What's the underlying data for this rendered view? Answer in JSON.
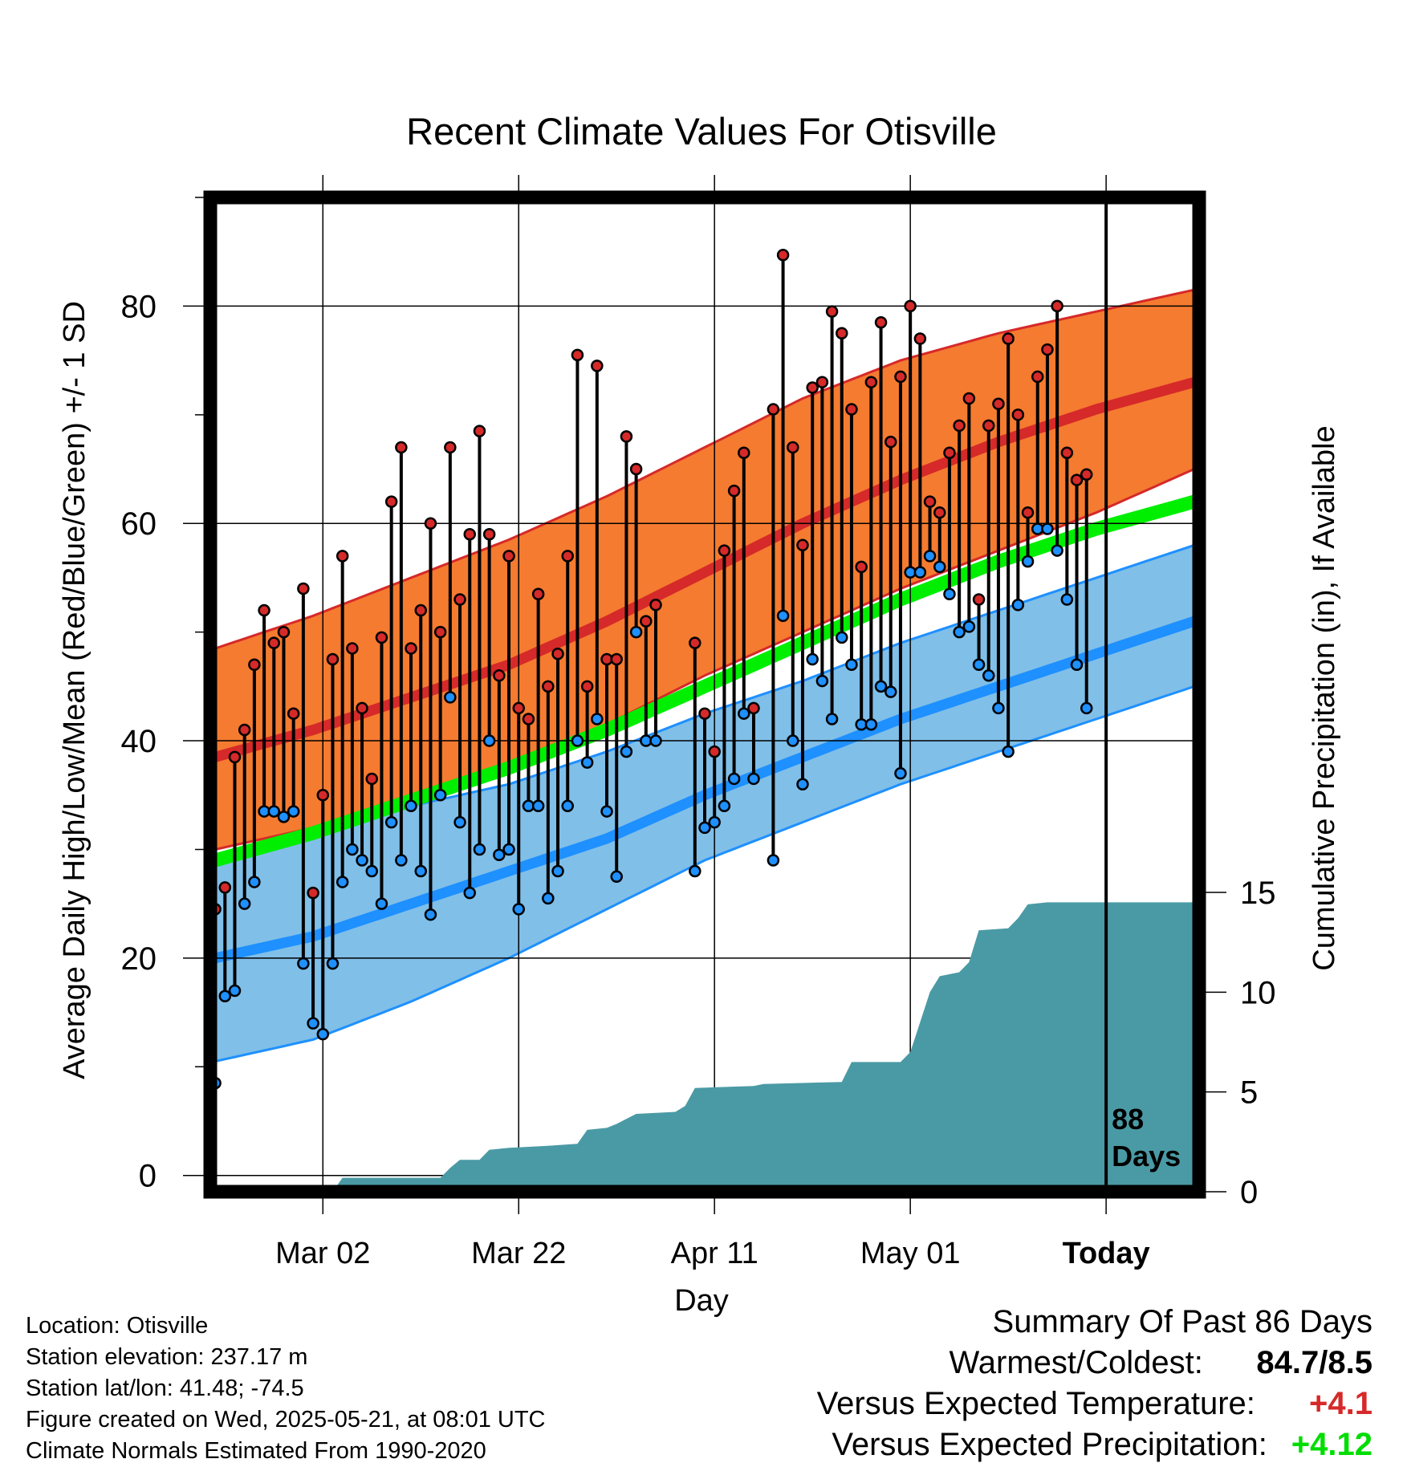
{
  "chart_data": {
    "type": "line",
    "title": "Recent Climate Values For Otisville",
    "xlabel": "Day",
    "ylabel": "Average Daily High/Low/Mean (Red/Blue/Green) +/- 1 SD",
    "y2label": "Cumulative Precipitation (in), If Available",
    "x_tick_labels": [
      "Mar 02",
      "Mar 22",
      "Apr 11",
      "May 01",
      "Today"
    ],
    "x_tick_days": [
      12,
      32,
      52,
      72,
      92
    ],
    "y_ticks": [
      0,
      20,
      40,
      60,
      80
    ],
    "y2_ticks": [
      0,
      5,
      10,
      15
    ],
    "ylim": [
      -1.5,
      90
    ],
    "y2lim": [
      0,
      15
    ],
    "xlim": [
      0.5,
      101.5
    ],
    "today_day": 92,
    "today_annotation": "88 Days",
    "today_annotation_lines": [
      "88",
      "Days"
    ],
    "grid": true,
    "colors": {
      "high_band": "#f47b30",
      "high_mean": "#d62929",
      "low_band": "#80bfe8",
      "low_mean": "#1e90ff",
      "mean": "#00ee00",
      "precip": "#4a9aa5",
      "high_marker": "#d62929",
      "low_marker": "#1e90ff"
    },
    "normals": {
      "days": [
        1,
        11,
        21,
        31,
        41,
        51,
        61,
        71,
        81,
        91,
        101
      ],
      "high_mean": [
        38.5,
        41,
        44,
        47,
        51,
        55.5,
        60,
        64,
        67.5,
        70.5,
        73
      ],
      "high_sd_upper": [
        48.5,
        51.5,
        55,
        58.5,
        62.5,
        67,
        71.5,
        75,
        77.5,
        79.5,
        81.5
      ],
      "high_sd_lower": [
        30,
        32,
        34.5,
        37.5,
        41.5,
        46,
        50,
        54,
        57.5,
        61,
        65
      ],
      "low_mean": [
        20,
        22,
        25,
        28,
        31,
        35,
        38.5,
        42,
        45,
        48,
        51
      ],
      "low_sd_upper": [
        29,
        31,
        34,
        36,
        39,
        42.5,
        45.5,
        49,
        52,
        55,
        58
      ],
      "low_sd_lower": [
        10.5,
        12.5,
        16,
        20,
        24.5,
        29,
        32.5,
        36,
        39,
        42,
        45
      ],
      "daily_mean": [
        29,
        31.5,
        34.5,
        37.5,
        41,
        45,
        49,
        53,
        56.5,
        59.5,
        62
      ]
    },
    "daily_obs": [
      {
        "day": 1,
        "high": 24.5,
        "low": 8.5
      },
      {
        "day": 2,
        "high": 26.5,
        "low": 16.5
      },
      {
        "day": 3,
        "high": 38.5,
        "low": 17
      },
      {
        "day": 4,
        "high": 41,
        "low": 25
      },
      {
        "day": 5,
        "high": 47,
        "low": 27
      },
      {
        "day": 6,
        "high": 52,
        "low": 33.5
      },
      {
        "day": 7,
        "high": 49,
        "low": 33.5
      },
      {
        "day": 8,
        "high": 50,
        "low": 33
      },
      {
        "day": 9,
        "high": 42.5,
        "low": 33.5
      },
      {
        "day": 10,
        "high": 54,
        "low": 19.5
      },
      {
        "day": 11,
        "high": 26,
        "low": 14
      },
      {
        "day": 12,
        "high": 35,
        "low": 13
      },
      {
        "day": 13,
        "high": 47.5,
        "low": 19.5
      },
      {
        "day": 14,
        "high": 57,
        "low": 27
      },
      {
        "day": 15,
        "high": 48.5,
        "low": 30
      },
      {
        "day": 16,
        "high": 43,
        "low": 29
      },
      {
        "day": 17,
        "high": 36.5,
        "low": 28
      },
      {
        "day": 18,
        "high": 49.5,
        "low": 25
      },
      {
        "day": 19,
        "high": 62,
        "low": 32.5
      },
      {
        "day": 20,
        "high": 67,
        "low": 29
      },
      {
        "day": 21,
        "high": 48.5,
        "low": 34
      },
      {
        "day": 22,
        "high": 52,
        "low": 28
      },
      {
        "day": 23,
        "high": 60,
        "low": 24
      },
      {
        "day": 24,
        "high": 50,
        "low": 35
      },
      {
        "day": 25,
        "high": 67,
        "low": 44
      },
      {
        "day": 26,
        "high": 53,
        "low": 32.5
      },
      {
        "day": 27,
        "high": 59,
        "low": 26
      },
      {
        "day": 28,
        "high": 68.5,
        "low": 30
      },
      {
        "day": 29,
        "high": 59,
        "low": 40
      },
      {
        "day": 30,
        "high": 46,
        "low": 29.5
      },
      {
        "day": 31,
        "high": 57,
        "low": 30
      },
      {
        "day": 32,
        "high": 43,
        "low": 24.5
      },
      {
        "day": 33,
        "high": 42,
        "low": 34
      },
      {
        "day": 34,
        "high": 53.5,
        "low": 34
      },
      {
        "day": 35,
        "high": 45,
        "low": 25.5
      },
      {
        "day": 36,
        "high": 48,
        "low": 28
      },
      {
        "day": 37,
        "high": 57,
        "low": 34
      },
      {
        "day": 38,
        "high": 75.5,
        "low": 40
      },
      {
        "day": 39,
        "high": 45,
        "low": 38
      },
      {
        "day": 40,
        "high": 74.5,
        "low": 42
      },
      {
        "day": 41,
        "high": 47.5,
        "low": 33.5
      },
      {
        "day": 42,
        "high": 47.5,
        "low": 27.5
      },
      {
        "day": 43,
        "high": 68,
        "low": 39
      },
      {
        "day": 44,
        "high": 65,
        "low": 50
      },
      {
        "day": 45,
        "high": 51,
        "low": 40
      },
      {
        "day": 46,
        "high": 52.5,
        "low": 40
      },
      {
        "day": 50,
        "high": 49,
        "low": 28
      },
      {
        "day": 51,
        "high": 42.5,
        "low": 32
      },
      {
        "day": 52,
        "high": 39,
        "low": 32.5
      },
      {
        "day": 53,
        "high": 57.5,
        "low": 34
      },
      {
        "day": 54,
        "high": 63,
        "low": 36.5
      },
      {
        "day": 55,
        "high": 66.5,
        "low": 42.5
      },
      {
        "day": 56,
        "high": 43,
        "low": 36.5
      },
      {
        "day": 58,
        "high": 70.5,
        "low": 29
      },
      {
        "day": 59,
        "high": 84.7,
        "low": 51.5
      },
      {
        "day": 60,
        "high": 67,
        "low": 40
      },
      {
        "day": 61,
        "high": 58,
        "low": 36
      },
      {
        "day": 62,
        "high": 72.5,
        "low": 47.5
      },
      {
        "day": 63,
        "high": 73,
        "low": 45.5
      },
      {
        "day": 64,
        "high": 79.5,
        "low": 42
      },
      {
        "day": 65,
        "high": 77.5,
        "low": 49.5
      },
      {
        "day": 66,
        "high": 70.5,
        "low": 47
      },
      {
        "day": 67,
        "high": 56,
        "low": 41.5
      },
      {
        "day": 68,
        "high": 73,
        "low": 41.5
      },
      {
        "day": 69,
        "high": 78.5,
        "low": 45
      },
      {
        "day": 70,
        "high": 67.5,
        "low": 44.5
      },
      {
        "day": 71,
        "high": 73.5,
        "low": 37
      },
      {
        "day": 72,
        "high": 80,
        "low": 55.5
      },
      {
        "day": 73,
        "high": 77,
        "low": 55.5
      },
      {
        "day": 74,
        "high": 62,
        "low": 57
      },
      {
        "day": 75,
        "high": 61,
        "low": 56
      },
      {
        "day": 76,
        "high": 66.5,
        "low": 53.5
      },
      {
        "day": 77,
        "high": 69,
        "low": 50
      },
      {
        "day": 78,
        "high": 71.5,
        "low": 50.5
      },
      {
        "day": 79,
        "high": 53,
        "low": 47
      },
      {
        "day": 80,
        "high": 69,
        "low": 46
      },
      {
        "day": 81,
        "high": 71,
        "low": 43
      },
      {
        "day": 82,
        "high": 77,
        "low": 39
      },
      {
        "day": 83,
        "high": 70,
        "low": 52.5
      },
      {
        "day": 84,
        "high": 61,
        "low": 56.5
      },
      {
        "day": 85,
        "high": 73.5,
        "low": 59.5
      },
      {
        "day": 86,
        "high": 76,
        "low": 59.5
      },
      {
        "day": 87,
        "high": 80,
        "low": 57.5
      },
      {
        "day": 88,
        "high": 66.5,
        "low": 53
      },
      {
        "day": 89,
        "high": 64,
        "low": 47
      },
      {
        "day": 90,
        "high": 64.5,
        "low": 43
      }
    ],
    "precip_cumulative": [
      [
        1,
        0
      ],
      [
        13,
        0
      ],
      [
        14,
        0.7
      ],
      [
        24,
        0.7
      ],
      [
        25,
        1.2
      ],
      [
        26,
        1.6
      ],
      [
        28,
        1.6
      ],
      [
        29,
        2.1
      ],
      [
        31,
        2.2
      ],
      [
        35,
        2.3
      ],
      [
        38,
        2.4
      ],
      [
        39,
        3.1
      ],
      [
        41,
        3.2
      ],
      [
        42,
        3.4
      ],
      [
        44,
        3.9
      ],
      [
        48,
        4.0
      ],
      [
        49,
        4.3
      ],
      [
        50,
        5.2
      ],
      [
        56,
        5.3
      ],
      [
        57,
        5.4
      ],
      [
        65,
        5.5
      ],
      [
        66,
        6.5
      ],
      [
        71,
        6.5
      ],
      [
        72,
        7.0
      ],
      [
        73,
        8.5
      ],
      [
        74,
        10.0
      ],
      [
        75,
        10.8
      ],
      [
        77,
        11.0
      ],
      [
        78,
        11.5
      ],
      [
        79,
        13.1
      ],
      [
        82,
        13.2
      ],
      [
        83,
        13.7
      ],
      [
        84,
        14.4
      ],
      [
        86,
        14.5
      ],
      [
        101.5,
        14.5
      ]
    ]
  },
  "footer": {
    "location": "Location: Otisville",
    "elevation": "Station elevation: 237.17 m",
    "latlon": "Station lat/lon: 41.48; -74.5",
    "created": "Figure created on Wed, 2025-05-21, at 08:01 UTC",
    "normals_period": "Climate Normals Estimated From 1990-2020"
  },
  "summary": {
    "title": "Summary Of Past 86 Days",
    "warmest_coldest_label": "Warmest/Coldest:",
    "warmest_coldest_value": "84.7/8.5",
    "temp_label": "Versus Expected Temperature:",
    "temp_value": "+4.1",
    "temp_color": "#d62929",
    "precip_label": "Versus Expected Precipitation:",
    "precip_value": "+4.12",
    "precip_color": "#00dd00"
  }
}
